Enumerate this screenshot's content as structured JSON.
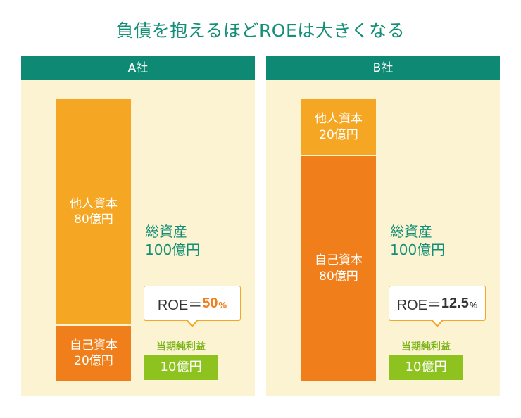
{
  "title": "負債を抱えるほどROEは大きくなる",
  "colors": {
    "teal": "#0e8a74",
    "other_capital": "#f5a623",
    "own_capital": "#f07f1b",
    "net_profit": "#8dc21f",
    "panel_bg": "#fcf3d3"
  },
  "company_a": {
    "name": "A社",
    "other_capital": {
      "line1": "他人資本",
      "line2": "80億円",
      "value": 80
    },
    "own_capital": {
      "line1": "自己資本",
      "line2": "20億円",
      "value": 20
    },
    "total_assets": {
      "line1": "総資産",
      "line2": "100億円",
      "value": 100
    },
    "roe": {
      "prefix": "ROE＝",
      "value": "50",
      "unit": "%"
    },
    "net_profit": {
      "label": "当期純利益",
      "value": "10億円"
    }
  },
  "company_b": {
    "name": "B社",
    "other_capital": {
      "line1": "他人資本",
      "line2": "20億円",
      "value": 20
    },
    "own_capital": {
      "line1": "自己資本",
      "line2": "80億円",
      "value": 80
    },
    "total_assets": {
      "line1": "総資産",
      "line2": "100億円",
      "value": 100
    },
    "roe": {
      "prefix": "ROE＝",
      "value": "12.5",
      "unit": "%"
    },
    "net_profit": {
      "label": "当期純利益",
      "value": "10億円"
    }
  }
}
